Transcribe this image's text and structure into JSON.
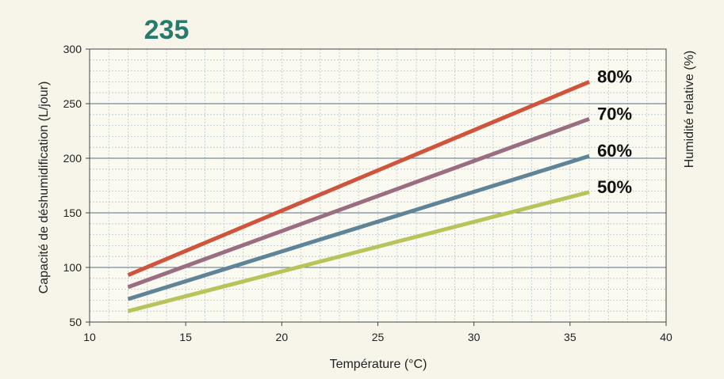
{
  "chart_data": {
    "type": "line",
    "title": "235",
    "xlabel": "Température (°C)",
    "ylabel": "Capacité de déshumidification (L/jour)",
    "y2label": "Humidité relative (%)",
    "xlim": [
      10,
      40
    ],
    "ylim": [
      50,
      300
    ],
    "xticks": [
      "10",
      "15",
      "20",
      "25",
      "30",
      "35",
      "40"
    ],
    "yticks": [
      "50",
      "100",
      "150",
      "200",
      "250",
      "300"
    ],
    "grid": true,
    "series": [
      {
        "name": "80%",
        "color": "#d0533c",
        "x": [
          12,
          36
        ],
        "y": [
          93,
          270
        ]
      },
      {
        "name": "70%",
        "color": "#9a6d80",
        "x": [
          12,
          36
        ],
        "y": [
          82,
          236
        ]
      },
      {
        "name": "60%",
        "color": "#5f8498",
        "x": [
          12,
          36
        ],
        "y": [
          71,
          202
        ]
      },
      {
        "name": "50%",
        "color": "#b8c45a",
        "x": [
          12,
          36
        ],
        "y": [
          60,
          169
        ]
      }
    ]
  }
}
